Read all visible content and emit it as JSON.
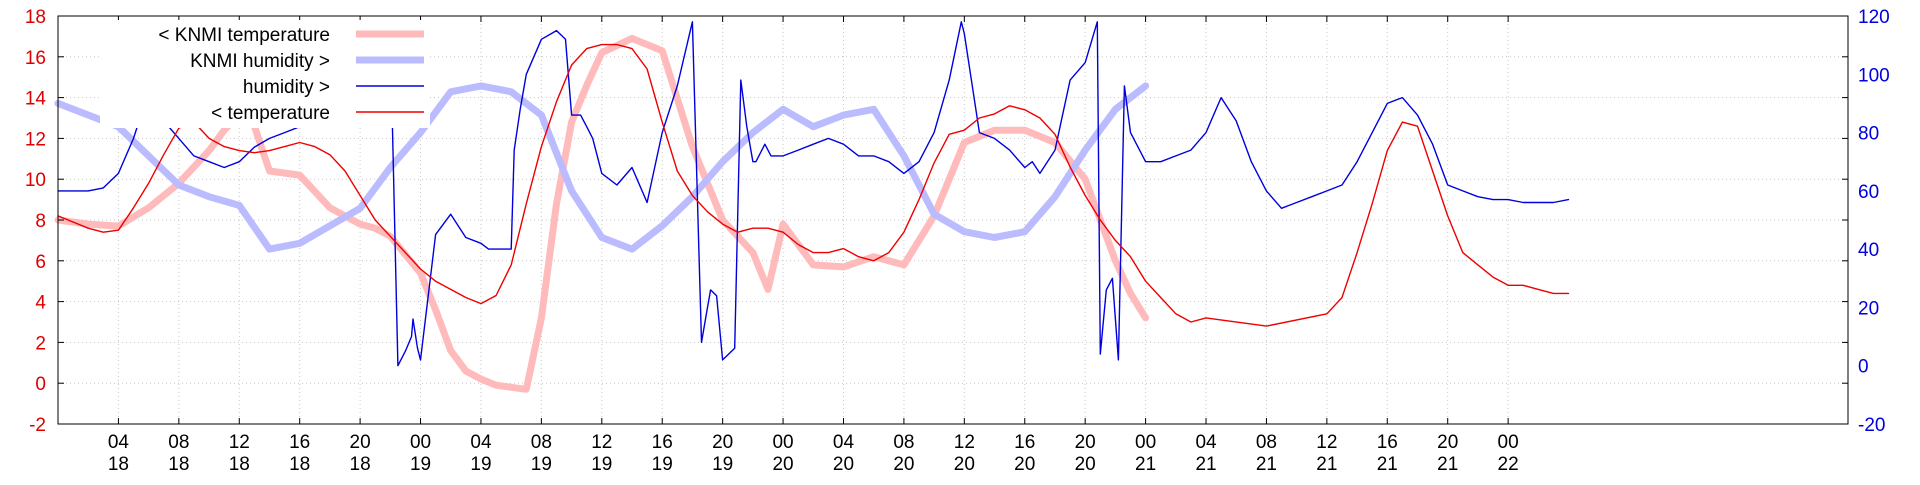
{
  "chart_data": {
    "type": "line",
    "x_unit": "hour",
    "x_range": [
      0,
      118.5
    ],
    "x_ticks": [
      {
        "x": 4,
        "hour": "04",
        "day": "18"
      },
      {
        "x": 8,
        "hour": "08",
        "day": "18"
      },
      {
        "x": 12,
        "hour": "12",
        "day": "18"
      },
      {
        "x": 16,
        "hour": "16",
        "day": "18"
      },
      {
        "x": 20,
        "hour": "20",
        "day": "18"
      },
      {
        "x": 24,
        "hour": "00",
        "day": "19"
      },
      {
        "x": 28,
        "hour": "04",
        "day": "19"
      },
      {
        "x": 32,
        "hour": "08",
        "day": "19"
      },
      {
        "x": 36,
        "hour": "12",
        "day": "19"
      },
      {
        "x": 40,
        "hour": "16",
        "day": "19"
      },
      {
        "x": 44,
        "hour": "20",
        "day": "19"
      },
      {
        "x": 48,
        "hour": "00",
        "day": "20"
      },
      {
        "x": 52,
        "hour": "04",
        "day": "20"
      },
      {
        "x": 56,
        "hour": "08",
        "day": "20"
      },
      {
        "x": 60,
        "hour": "12",
        "day": "20"
      },
      {
        "x": 64,
        "hour": "16",
        "day": "20"
      },
      {
        "x": 68,
        "hour": "20",
        "day": "20"
      },
      {
        "x": 72,
        "hour": "00",
        "day": "21"
      },
      {
        "x": 76,
        "hour": "04",
        "day": "21"
      },
      {
        "x": 80,
        "hour": "08",
        "day": "21"
      },
      {
        "x": 84,
        "hour": "12",
        "day": "21"
      },
      {
        "x": 88,
        "hour": "16",
        "day": "21"
      },
      {
        "x": 92,
        "hour": "20",
        "day": "21"
      },
      {
        "x": 96,
        "hour": "00",
        "day": "22"
      }
    ],
    "y_left": {
      "range": [
        -2,
        18
      ],
      "ticks": [
        -2,
        0,
        2,
        4,
        6,
        8,
        10,
        12,
        14,
        16,
        18
      ],
      "color": "#dd0000"
    },
    "y_right": {
      "range": [
        -20,
        120
      ],
      "ticks": [
        -20,
        0,
        20,
        40,
        60,
        80,
        100,
        120
      ],
      "color": "#0000dd"
    },
    "grid": true,
    "legend_placement": "top-left",
    "series": [
      {
        "name": "< KNMI temperature",
        "axis": "left",
        "color": "#ffbbbb",
        "x": [
          0,
          2,
          4,
          6,
          8,
          10,
          11,
          12,
          13,
          14,
          16,
          18,
          20,
          21,
          22,
          24,
          25,
          26,
          27,
          28,
          29,
          30,
          31,
          32,
          33,
          34,
          35,
          36,
          38,
          40,
          42,
          44,
          45,
          46,
          47,
          48,
          49,
          50,
          52,
          54,
          56,
          58,
          60,
          62,
          64,
          66,
          68,
          70,
          71,
          72
        ],
        "y": [
          8.0,
          7.8,
          7.7,
          8.6,
          9.8,
          11.4,
          12.4,
          13.2,
          12.6,
          10.4,
          10.2,
          8.6,
          7.8,
          7.6,
          7.2,
          5.4,
          3.6,
          1.6,
          0.6,
          0.2,
          -0.1,
          -0.2,
          -0.3,
          3.2,
          8.8,
          12.8,
          14.6,
          16.2,
          16.9,
          16.3,
          11.6,
          8.0,
          7.2,
          6.4,
          4.6,
          7.8,
          6.8,
          5.8,
          5.7,
          6.2,
          5.8,
          8.2,
          11.8,
          12.4,
          12.4,
          11.8,
          10.0,
          6.0,
          4.4,
          3.2
        ]
      },
      {
        "name": "KNMI humidity >",
        "axis": "right",
        "color": "#bbbbff",
        "x": [
          0,
          4,
          6,
          8,
          10,
          12,
          14,
          16,
          18,
          20,
          22,
          24,
          26,
          28,
          30,
          32,
          34,
          36,
          38,
          40,
          42,
          44,
          46,
          48,
          50,
          52,
          54,
          56,
          58,
          60,
          62,
          64,
          66,
          68,
          70,
          72
        ],
        "y": [
          90,
          82,
          72,
          62,
          58,
          55,
          40,
          42,
          48,
          54,
          68,
          80,
          94,
          96,
          94,
          86,
          60,
          44,
          40,
          48,
          58,
          70,
          80,
          88,
          82,
          86,
          88,
          72,
          52,
          46,
          44,
          46,
          58,
          74,
          88,
          96
        ]
      },
      {
        "name": "humidity >",
        "axis": "right",
        "color": "#0000dd",
        "x": [
          0,
          2,
          3,
          4,
          5,
          6,
          7,
          8,
          9,
          10,
          11,
          12,
          13,
          14,
          15,
          16,
          17,
          18,
          19,
          20,
          21,
          22,
          22.5,
          23,
          23.4,
          23.5,
          23.8,
          24,
          25,
          26,
          27,
          28,
          28.5,
          29,
          29.5,
          30,
          30.2,
          30.6,
          31,
          32,
          33,
          33.6,
          34,
          34.6,
          35,
          35.2,
          35.4,
          36,
          37,
          38,
          39,
          40,
          41,
          42,
          42.6,
          43,
          43.2,
          43.6,
          44,
          44.8,
          45.2,
          45.6,
          46,
          46.2,
          46.8,
          47.2,
          48,
          49,
          50,
          51,
          52,
          53,
          54,
          55,
          56,
          57,
          58,
          59,
          59.8,
          60,
          61,
          62,
          63,
          64,
          64.5,
          65,
          66,
          67,
          68,
          68.8,
          69,
          69.4,
          69.8,
          70.2,
          70.6,
          71,
          72,
          73,
          74,
          75,
          76,
          77,
          78,
          79,
          80,
          81,
          81.5,
          82,
          83,
          84,
          85,
          86,
          87,
          88,
          89,
          90,
          91,
          92,
          93,
          94,
          95,
          96,
          97,
          98,
          99,
          100
        ],
        "y": [
          60,
          60,
          61,
          66,
          78,
          94,
          84,
          78,
          72,
          70,
          68,
          70,
          75,
          78,
          80,
          82,
          83,
          84,
          98,
          100,
          110,
          114,
          0,
          5,
          10,
          16,
          6,
          2,
          45,
          52,
          44,
          42,
          40,
          40,
          40,
          40,
          74,
          88,
          100,
          112,
          115,
          112,
          86,
          86,
          82,
          80,
          78,
          66,
          62,
          68,
          56,
          80,
          96,
          118,
          8,
          20,
          26,
          24,
          2,
          6,
          98,
          82,
          70,
          70,
          76,
          72,
          72,
          74,
          76,
          78,
          76,
          72,
          72,
          70,
          66,
          70,
          80,
          98,
          118,
          114,
          80,
          78,
          74,
          68,
          70,
          66,
          74,
          98,
          104,
          118,
          4,
          26,
          30,
          2,
          96,
          80,
          70,
          70,
          72,
          74,
          80,
          92,
          84,
          70,
          60,
          54,
          55,
          56,
          58,
          60,
          62,
          70,
          80,
          90,
          92,
          86,
          76,
          62,
          60,
          58,
          57,
          57,
          56,
          56,
          56,
          57
        ]
      },
      {
        "name": "< temperature",
        "axis": "left",
        "color": "#ee0000",
        "x": [
          0,
          2,
          3,
          4,
          5,
          6,
          7,
          8,
          9,
          10,
          11,
          12,
          13,
          14,
          15,
          16,
          17,
          18,
          19,
          20,
          21,
          22,
          23,
          24,
          25,
          26,
          27,
          28,
          29,
          30,
          31,
          32,
          33,
          34,
          35,
          36,
          37,
          38,
          39,
          40,
          41,
          42,
          43,
          44,
          45,
          46,
          47,
          48,
          49,
          50,
          51,
          52,
          53,
          54,
          55,
          56,
          57,
          58,
          59,
          60,
          61,
          62,
          63,
          64,
          65,
          66,
          67,
          68,
          69,
          70,
          71,
          72,
          73,
          74,
          75,
          76,
          80,
          84,
          85,
          86,
          87,
          88,
          89,
          90,
          91,
          92,
          93,
          94,
          95,
          96,
          97,
          98,
          99,
          100
        ],
        "y": [
          8.2,
          7.6,
          7.4,
          7.5,
          8.6,
          9.8,
          11.2,
          12.5,
          12.8,
          12.0,
          11.6,
          11.4,
          11.3,
          11.4,
          11.6,
          11.8,
          11.6,
          11.2,
          10.4,
          9.2,
          8.0,
          7.2,
          6.4,
          5.6,
          5.0,
          4.6,
          4.2,
          3.9,
          4.3,
          5.8,
          8.8,
          11.6,
          13.8,
          15.6,
          16.4,
          16.6,
          16.6,
          16.4,
          15.4,
          12.8,
          10.4,
          9.2,
          8.4,
          7.8,
          7.4,
          7.6,
          7.6,
          7.4,
          6.8,
          6.4,
          6.4,
          6.6,
          6.2,
          6.0,
          6.4,
          7.4,
          9.0,
          10.8,
          12.2,
          12.4,
          13.0,
          13.2,
          13.6,
          13.4,
          13.0,
          12.2,
          10.6,
          9.2,
          8.0,
          7.0,
          6.2,
          5.0,
          4.2,
          3.4,
          3.0,
          3.2,
          2.8,
          3.4,
          4.2,
          6.4,
          8.8,
          11.4,
          12.8,
          12.6,
          10.4,
          8.2,
          6.4,
          5.8,
          5.2,
          4.8,
          4.8,
          4.6,
          4.4,
          4.4
        ]
      }
    ]
  }
}
